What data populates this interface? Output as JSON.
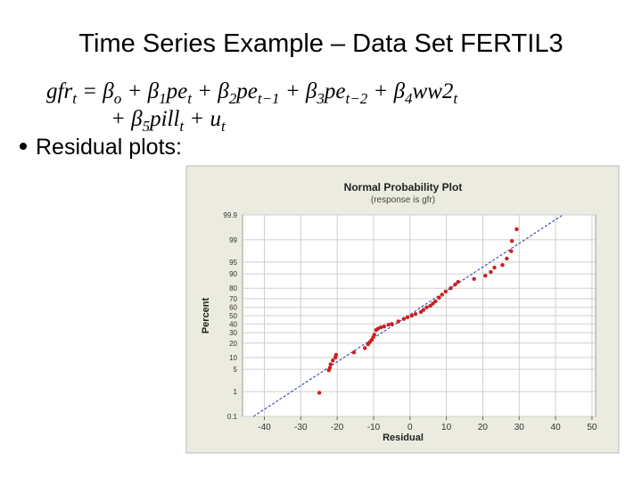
{
  "slide_title": "Time Series Example – Data Set FERTIL3",
  "equation": [
    [
      {
        "text": "gfr",
        "sub": "t"
      },
      {
        "text": " = β",
        "sub": "o"
      },
      {
        "text": " + β",
        "sub": "1"
      },
      {
        "text": "pe",
        "sub": "t"
      },
      {
        "text": " + β",
        "sub": "2"
      },
      {
        "text": "pe",
        "sub": "t−1"
      },
      {
        "text": " + β",
        "sub": "3"
      },
      {
        "text": "pe",
        "sub": "t−2"
      },
      {
        "text": " + β",
        "sub": "4"
      },
      {
        "text": "ww2",
        "sub": "t"
      }
    ],
    [
      {
        "text": "+ β",
        "sub": "5"
      },
      {
        "text": "pill",
        "sub": "t"
      },
      {
        "text": " + u",
        "sub": "t"
      }
    ]
  ],
  "bullet": "Residual plots:",
  "chart_data": {
    "type": "probability",
    "title": "Normal Probability Plot",
    "subtitle": "(response is gfr)",
    "x_label": "Residual",
    "y_label": "Percent",
    "xlim": [
      -46,
      51
    ],
    "ylim": [
      0.1,
      99.9
    ],
    "xticks": [
      -40,
      -30,
      -20,
      -10,
      0,
      10,
      20,
      30,
      40,
      50
    ],
    "yticks": [
      0.1,
      1,
      5,
      10,
      20,
      30,
      40,
      50,
      60,
      70,
      80,
      90,
      95,
      99,
      99.9
    ],
    "grid": true,
    "fit_line": {
      "x": [
        -43,
        42
      ],
      "y": [
        0.1,
        99.9
      ],
      "color": "#2233aa"
    },
    "series": [
      {
        "color": "#cc1f1f",
        "x": [
          -24.9,
          -22.3,
          -22.0,
          -21.8,
          -21.2,
          -20.5,
          -20.3,
          -15.4,
          -12.4,
          -11.5,
          -11.0,
          -10.5,
          -10.1,
          -9.8,
          -9.3,
          -8.8,
          -8.0,
          -7.1,
          -5.9,
          -5.0,
          -3.2,
          -1.7,
          -0.7,
          0.5,
          1.5,
          3.0,
          3.7,
          4.6,
          5.6,
          6.3,
          7.0,
          8.0,
          8.8,
          9.8,
          11.2,
          12.4,
          13.2,
          17.6,
          20.7,
          22.2,
          23.2,
          25.4,
          26.6,
          27.8,
          28.0,
          29.3
        ],
        "y": [
          0.9,
          4.7,
          5.5,
          6.8,
          8.5,
          10,
          11.5,
          13,
          16,
          19,
          21,
          23,
          25.5,
          28,
          33,
          34.5,
          36,
          37,
          39,
          40,
          43,
          46,
          48,
          50,
          52,
          54.5,
          57,
          60,
          62,
          64.5,
          67,
          71,
          74,
          77,
          80,
          83,
          85,
          87,
          89,
          91,
          93,
          94,
          96,
          97.6,
          98.9,
          99.6
        ]
      }
    ]
  }
}
